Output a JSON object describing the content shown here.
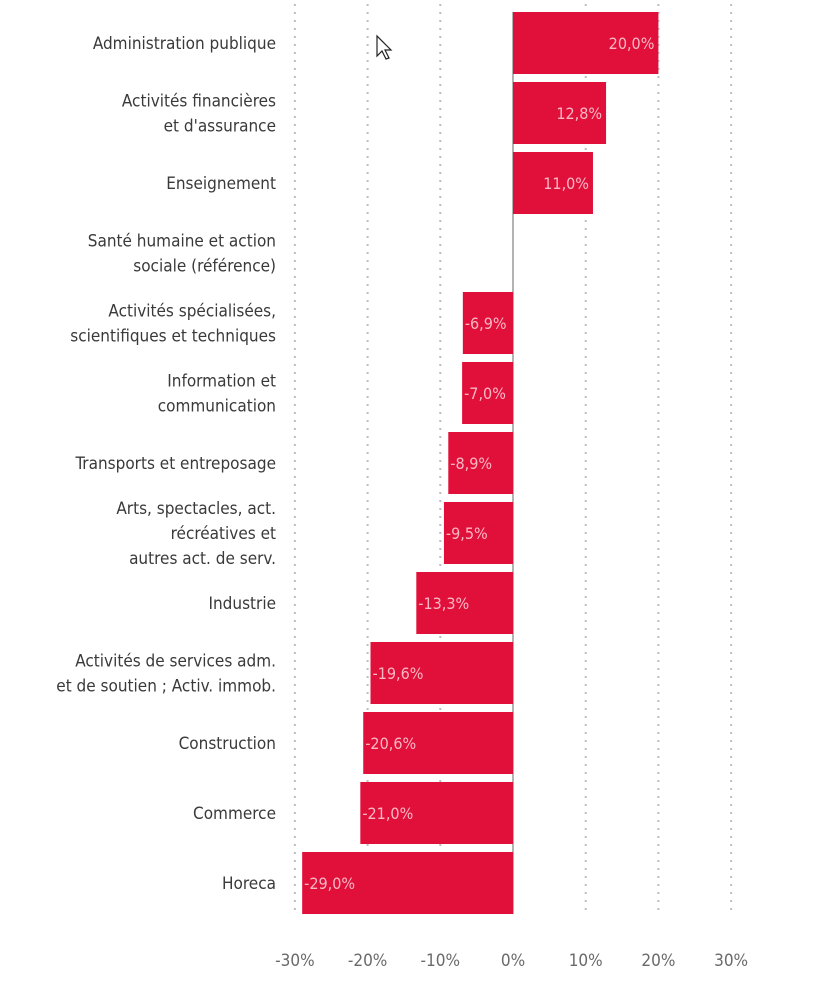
{
  "chart_data": {
    "type": "bar",
    "orientation": "horizontal",
    "categories": [
      [
        "Administration publique"
      ],
      [
        "Activités financières",
        "et d'assurance"
      ],
      [
        "Enseignement"
      ],
      [
        "Santé humaine et action",
        "sociale (référence)"
      ],
      [
        "Activités spécialisées,",
        "scientifiques et techniques"
      ],
      [
        "Information et",
        "communication"
      ],
      [
        "Transports et entreposage"
      ],
      [
        "Arts, spectacles, act.",
        "récréatives et",
        "autres act. de serv."
      ],
      [
        "Industrie"
      ],
      [
        "Activités de services adm.",
        "et de soutien ; Activ. immob."
      ],
      [
        "Construction"
      ],
      [
        "Commerce"
      ],
      [
        "Horeca"
      ]
    ],
    "values": [
      20.0,
      12.8,
      11.0,
      null,
      -6.9,
      -7.0,
      -8.9,
      -9.5,
      -13.3,
      -19.6,
      -20.6,
      -21.0,
      -29.0
    ],
    "data_labels": [
      "20,0%",
      "12,8%",
      "11,0%",
      "",
      "-6,9%",
      "-7,0%",
      "-8,9%",
      "-9,5%",
      "-13,3%",
      "-19,6%",
      "-20,6%",
      "-21,0%",
      "-29,0%"
    ],
    "xlim": [
      -30,
      30
    ],
    "ticks": [
      -30,
      -20,
      -10,
      0,
      10,
      20,
      30
    ],
    "tick_labels": [
      "-30%",
      "-20%",
      "-10%",
      "0%",
      "10%",
      "20%",
      "30%"
    ],
    "grid": "vertical dotted",
    "title": "",
    "xlabel": "",
    "ylabel": "",
    "colors": {
      "bar": "#e0103a",
      "label": "#f9b8c4",
      "grid": "#bdbdbd"
    }
  }
}
